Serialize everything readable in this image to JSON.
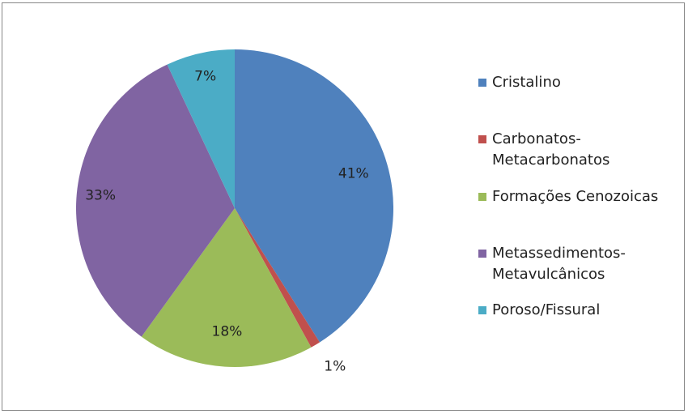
{
  "caption": "",
  "chart_data": {
    "type": "pie",
    "categories": [
      "Cristalino",
      "Carbonatos-Metacarbonatos",
      "Formações Cenozoicas",
      "Metassedimentos-Metavulcânicos",
      "Poroso/Fissural"
    ],
    "values": [
      41,
      1,
      18,
      33,
      7
    ],
    "labels": [
      "41%",
      "1%",
      "18%",
      "33%",
      "7%"
    ],
    "legend": [
      {
        "lines": [
          "Cristalino"
        ]
      },
      {
        "lines": [
          "Carbonatos-",
          "Metacarbonatos"
        ]
      },
      {
        "lines": [
          "Formações Cenozoicas"
        ]
      },
      {
        "lines": [
          "Metassedimentos-",
          "Metavulcânicos"
        ]
      },
      {
        "lines": [
          "Poroso/Fissural"
        ]
      }
    ],
    "colors": [
      "#4F81BD",
      "#C0504D",
      "#9BBB59",
      "#8064A2",
      "#4BACC6"
    ],
    "legend_position": "right",
    "start": "top",
    "direction": "clockwise"
  }
}
